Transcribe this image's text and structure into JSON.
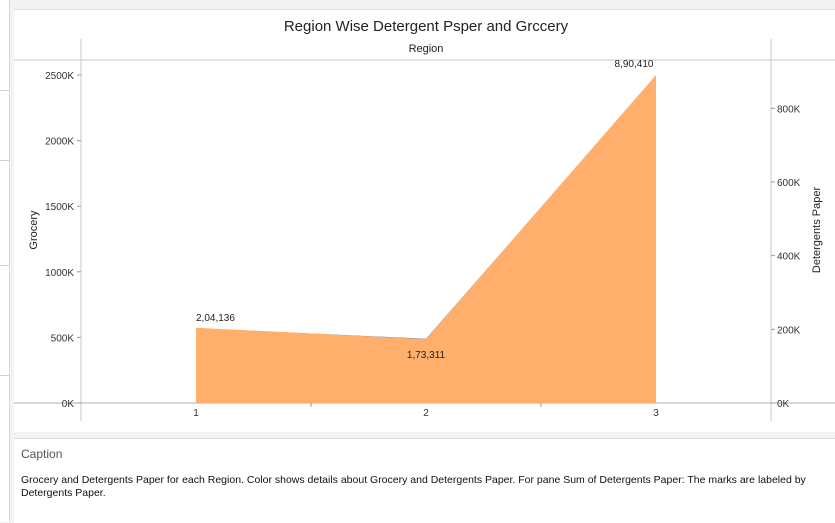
{
  "chart_data": {
    "type": "area",
    "title": "Region Wise Detergent Psper and Grccery",
    "column_header": "Region",
    "x": [
      "1",
      "2",
      "3"
    ],
    "series": [
      {
        "name": "Grocery",
        "axis": "left",
        "color": "#4e79a7",
        "values": [
          570000,
          490000,
          2490000
        ]
      },
      {
        "name": "Detergents Paper",
        "axis": "right",
        "color": "#ffae6b",
        "shadow_color": "#d98a4b",
        "values": [
          204136,
          173311,
          890410
        ]
      }
    ],
    "data_labels": [
      "2,04,136",
      "1,73,311",
      "8,90,410"
    ],
    "y_left": {
      "label": "Grocery",
      "ticks": [
        0,
        500000,
        1000000,
        1500000,
        2000000,
        2500000
      ],
      "tick_labels": [
        "0K",
        "500K",
        "1000K",
        "1500K",
        "2000K",
        "2500K"
      ],
      "range": [
        0,
        2500000
      ]
    },
    "y_right": {
      "label": "Detergents Paper",
      "ticks": [
        0,
        200000,
        400000,
        600000,
        800000
      ],
      "tick_labels": [
        "0K",
        "200K",
        "400K",
        "600K",
        "800K"
      ],
      "range": [
        0,
        890410
      ]
    }
  },
  "caption": {
    "title": "Caption",
    "text": "Grocery and Detergents Paper for each Region.  Color shows details about Grocery and Detergents Paper.  For pane Sum of Detergents Paper:  The marks are labeled by Detergents Paper."
  }
}
